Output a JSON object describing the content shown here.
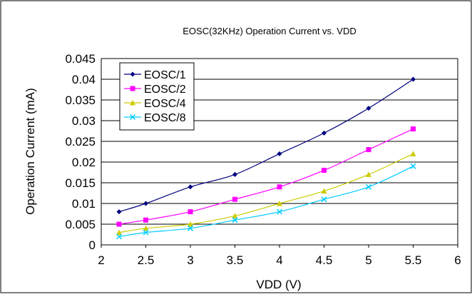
{
  "chart_data": {
    "type": "line",
    "title": "EOSC(32KHz) Operation Current  vs. VDD",
    "xlabel": "VDD (V)",
    "ylabel": "Operation Current (mA)",
    "xlim": [
      2,
      6
    ],
    "ylim": [
      0,
      0.045
    ],
    "xticks": [
      "2",
      "2.5",
      "3",
      "3.5",
      "4",
      "4.5",
      "5",
      "5.5",
      "6"
    ],
    "yticks": [
      "0",
      "0.005",
      "0.01",
      "0.015",
      "0.02",
      "0.025",
      "0.03",
      "0.035",
      "0.04",
      "0.045"
    ],
    "grid": "horizontal",
    "legend_position": "top-left",
    "x": [
      2.2,
      2.5,
      3.0,
      3.5,
      4.0,
      4.5,
      5.0,
      5.5
    ],
    "series": [
      {
        "name": "EOSC/1",
        "color": "#000080",
        "marker": "diamond",
        "values": [
          0.008,
          0.01,
          0.014,
          0.017,
          0.022,
          0.027,
          0.033,
          0.04
        ]
      },
      {
        "name": "EOSC/2",
        "color": "#ff00ff",
        "marker": "square",
        "values": [
          0.005,
          0.006,
          0.008,
          0.011,
          0.014,
          0.018,
          0.023,
          0.028
        ]
      },
      {
        "name": "EOSC/4",
        "color": "#cccc00",
        "marker": "triangle",
        "values": [
          0.003,
          0.004,
          0.005,
          0.007,
          0.01,
          0.013,
          0.017,
          0.022
        ]
      },
      {
        "name": "EOSC/8",
        "color": "#00ccff",
        "marker": "x",
        "values": [
          0.002,
          0.003,
          0.004,
          0.006,
          0.008,
          0.011,
          0.014,
          0.019
        ]
      }
    ]
  }
}
